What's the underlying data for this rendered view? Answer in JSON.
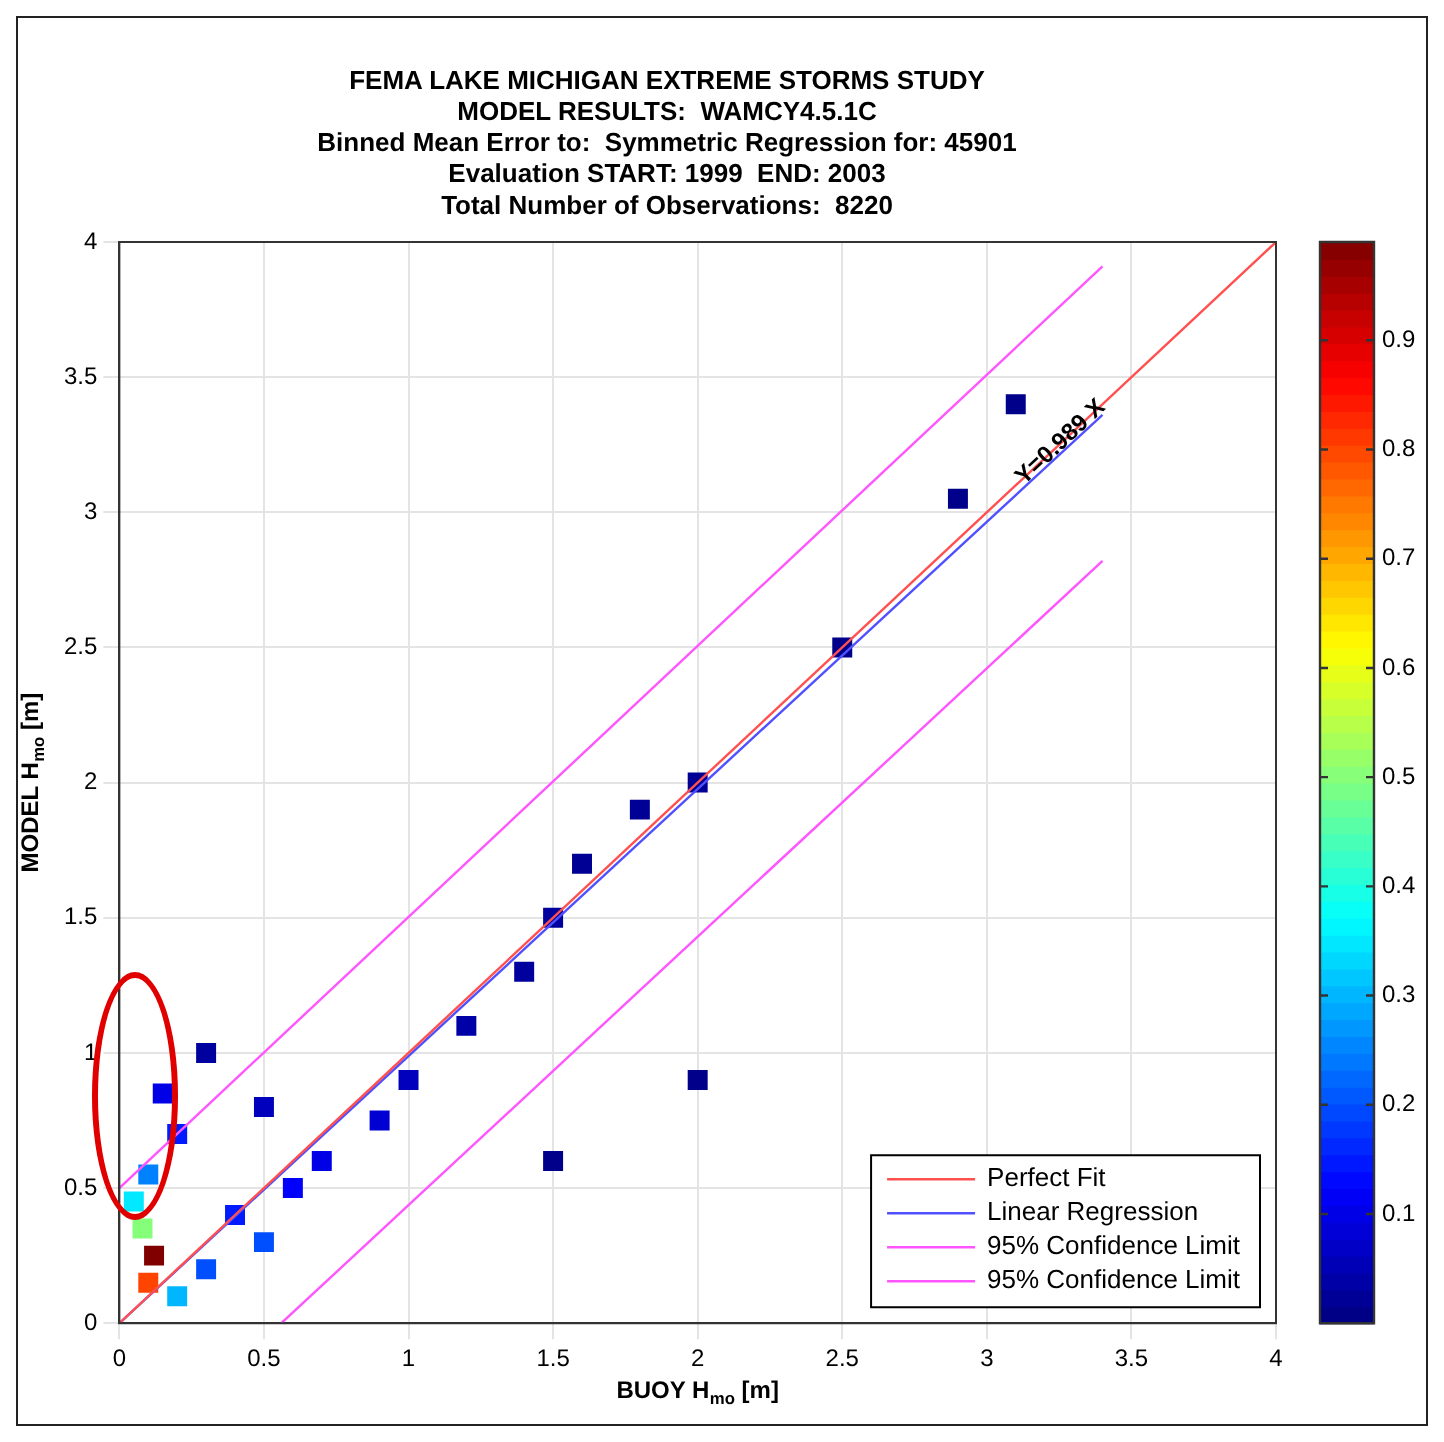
{
  "chart_data": {
    "type": "line",
    "title": "FEMA LAKE MICHIGAN EXTREME STORMS STUDY",
    "subtitle": "MODEL RESULTS:  WAMCY4.5.1C\nBinned Mean Error to:  Symmetric Regression for: 45901\nEvaluation START: 1999  END: 2003\nTotal Number of Observations:  8220",
    "xlabel": "BUOY H$_{mo}$ [m]",
    "ylabel": "MODEL H$_{mo}$ [m]",
    "xlim": [
      0,
      4
    ],
    "ylim": [
      0,
      4
    ],
    "xticks": [
      0,
      0.5,
      1,
      1.5,
      2,
      2.5,
      3,
      3.5,
      4
    ],
    "yticks": [
      0,
      0.5,
      1,
      1.5,
      2,
      2.5,
      3,
      3.5,
      4
    ],
    "grid": true,
    "legend": "bottom right",
    "clim": [
      0,
      0.99
    ],
    "cticks": [
      0.1,
      0.2,
      0.3,
      0.4,
      0.5,
      0.6,
      0.7,
      0.8,
      0.9
    ],
    "annotations": [
      {
        "text": "Y=0.989 X",
        "x": 3.2,
        "y": 3.2
      }
    ],
    "series": [
      {
        "type": "scatter",
        "colors": [
          "#800000",
          "#ff4400",
          "#85ff7a",
          "#00e9ff",
          "#0082ff",
          "#00b6ff",
          "#004fff",
          "#001bff",
          "#0000e7",
          "#001bff",
          "#004fff",
          "#0000fb",
          "#0000e7",
          "#0000d2",
          "#0000bd",
          "#0000bd",
          "#00009e",
          "#0000a9",
          "#00009e",
          "#00009e",
          "#000094",
          "#000094",
          "#000094",
          "#00008a",
          "#00008a",
          "#00008a",
          "#00008a",
          "#00008a"
        ],
        "x": [
          0.12,
          0.1,
          0.08,
          0.05,
          0.1,
          0.2,
          0.3,
          0.2,
          0.15,
          0.4,
          0.5,
          0.6,
          0.7,
          0.9,
          1,
          0.5,
          0.3,
          1.2,
          1.4,
          1.5,
          1.6,
          1.8,
          2,
          2,
          1.5,
          2.5,
          3.1,
          2.9
        ],
        "values": [
          0.25,
          0.15,
          0.35,
          0.45,
          0.55,
          0.1,
          0.2,
          0.7,
          0.85,
          0.4,
          0.3,
          0.5,
          0.6,
          0.75,
          0.9,
          0.8,
          1,
          1.1,
          1.3,
          1.5,
          1.7,
          1.9,
          2,
          0.9,
          0.6,
          2.5,
          3.4,
          3.05
        ],
        "cvalues": [
          0.99,
          0.8,
          0.5,
          0.35,
          0.25,
          0.3,
          0.2,
          0.15,
          0.1,
          0.15,
          0.2,
          0.12,
          0.1,
          0.08,
          0.06,
          0.06,
          0.03,
          0.04,
          0.03,
          0.03,
          0.02,
          0.02,
          0.02,
          0.01,
          0.01,
          0.01,
          0.01,
          0.01
        ]
      },
      {
        "name": "Perfect Fit",
        "color": "#ff5050",
        "x": [
          0,
          4
        ],
        "values": [
          0,
          4
        ]
      },
      {
        "name": "Linear Regression",
        "color": "#5050ff",
        "x": [
          0,
          3.4
        ],
        "values": [
          0,
          3.36
        ]
      },
      {
        "name": "95% Confidence Limit",
        "color": "#ff55ff",
        "x": [
          0,
          3.4
        ],
        "values": [
          0.5,
          3.91
        ]
      },
      {
        "name": "95% Confidence Limit",
        "color": "#ff55ff",
        "x": [
          0.56,
          3.4
        ],
        "values": [
          0,
          2.82
        ]
      }
    ]
  }
}
